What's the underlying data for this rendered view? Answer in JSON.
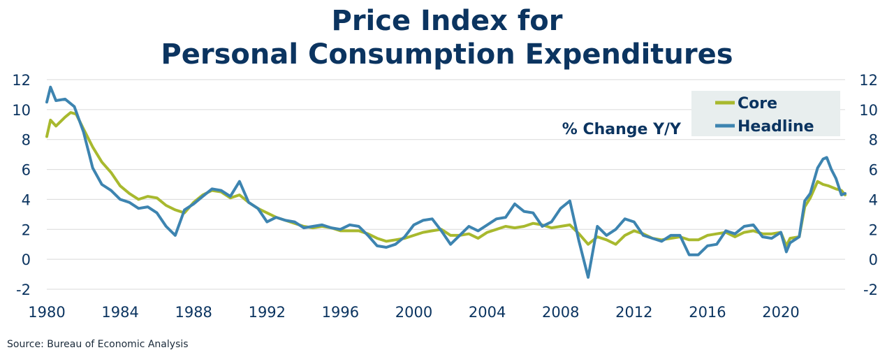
{
  "title_line1": "Price Index for",
  "title_line2": "Personal Consumption Expenditures",
  "source": "Source:  Bureau of Economic Analysis",
  "chart_data": {
    "type": "line",
    "title": "Price Index for Personal Consumption Expenditures",
    "annotation": "% Change Y/Y",
    "xlim": [
      1980,
      2023.5
    ],
    "ylim": [
      -2,
      12
    ],
    "x_ticks": [
      "1980",
      "1984",
      "1988",
      "1992",
      "1996",
      "2000",
      "2004",
      "2008",
      "2012",
      "2016",
      "2020"
    ],
    "y_ticks": [
      "-2",
      "0",
      "2",
      "4",
      "6",
      "8",
      "10",
      "12"
    ],
    "y_ticks_right": [
      "-2",
      "0",
      "2",
      "4",
      "6",
      "8",
      "10",
      "12"
    ],
    "grid": true,
    "legend_position": "top-right",
    "colors": {
      "core": "#a8b92e",
      "headline": "#3d84b0",
      "text": "#0b3460",
      "legend_bg": "#e8eeee",
      "grid": "#d9d9d9"
    },
    "series": [
      {
        "name": "Core",
        "color": "#a8b92e",
        "points": [
          [
            1980.0,
            8.2
          ],
          [
            1980.2,
            9.3
          ],
          [
            1980.5,
            8.9
          ],
          [
            1981.0,
            9.5
          ],
          [
            1981.3,
            9.8
          ],
          [
            1981.6,
            9.7
          ],
          [
            1982.0,
            8.7
          ],
          [
            1982.5,
            7.5
          ],
          [
            1983.0,
            6.5
          ],
          [
            1983.5,
            5.8
          ],
          [
            1984.0,
            4.9
          ],
          [
            1984.5,
            4.4
          ],
          [
            1985.0,
            4.0
          ],
          [
            1985.5,
            4.2
          ],
          [
            1986.0,
            4.1
          ],
          [
            1986.5,
            3.6
          ],
          [
            1987.0,
            3.3
          ],
          [
            1987.5,
            3.1
          ],
          [
            1988.0,
            3.8
          ],
          [
            1988.5,
            4.3
          ],
          [
            1989.0,
            4.6
          ],
          [
            1989.5,
            4.5
          ],
          [
            1990.0,
            4.1
          ],
          [
            1990.5,
            4.3
          ],
          [
            1991.0,
            3.8
          ],
          [
            1991.5,
            3.4
          ],
          [
            1992.0,
            3.1
          ],
          [
            1992.5,
            2.8
          ],
          [
            1993.0,
            2.6
          ],
          [
            1993.5,
            2.4
          ],
          [
            1994.0,
            2.2
          ],
          [
            1994.5,
            2.1
          ],
          [
            1995.0,
            2.2
          ],
          [
            1995.5,
            2.1
          ],
          [
            1996.0,
            1.9
          ],
          [
            1996.5,
            1.9
          ],
          [
            1997.0,
            1.9
          ],
          [
            1997.5,
            1.7
          ],
          [
            1998.0,
            1.4
          ],
          [
            1998.5,
            1.2
          ],
          [
            1999.0,
            1.3
          ],
          [
            1999.5,
            1.4
          ],
          [
            2000.0,
            1.6
          ],
          [
            2000.5,
            1.8
          ],
          [
            2001.0,
            1.9
          ],
          [
            2001.5,
            2.0
          ],
          [
            2002.0,
            1.6
          ],
          [
            2002.5,
            1.6
          ],
          [
            2003.0,
            1.7
          ],
          [
            2003.5,
            1.4
          ],
          [
            2004.0,
            1.8
          ],
          [
            2004.5,
            2.0
          ],
          [
            2005.0,
            2.2
          ],
          [
            2005.5,
            2.1
          ],
          [
            2006.0,
            2.2
          ],
          [
            2006.5,
            2.4
          ],
          [
            2007.0,
            2.3
          ],
          [
            2007.5,
            2.1
          ],
          [
            2008.0,
            2.2
          ],
          [
            2008.5,
            2.3
          ],
          [
            2009.0,
            1.7
          ],
          [
            2009.5,
            1.0
          ],
          [
            2010.0,
            1.5
          ],
          [
            2010.5,
            1.3
          ],
          [
            2011.0,
            1.0
          ],
          [
            2011.5,
            1.6
          ],
          [
            2012.0,
            1.9
          ],
          [
            2012.5,
            1.7
          ],
          [
            2013.0,
            1.4
          ],
          [
            2013.5,
            1.3
          ],
          [
            2014.0,
            1.4
          ],
          [
            2014.5,
            1.5
          ],
          [
            2015.0,
            1.3
          ],
          [
            2015.5,
            1.3
          ],
          [
            2016.0,
            1.6
          ],
          [
            2016.5,
            1.7
          ],
          [
            2017.0,
            1.8
          ],
          [
            2017.5,
            1.5
          ],
          [
            2018.0,
            1.8
          ],
          [
            2018.5,
            1.9
          ],
          [
            2019.0,
            1.7
          ],
          [
            2019.5,
            1.7
          ],
          [
            2020.0,
            1.8
          ],
          [
            2020.3,
            0.9
          ],
          [
            2020.5,
            1.4
          ],
          [
            2021.0,
            1.5
          ],
          [
            2021.3,
            3.5
          ],
          [
            2021.6,
            4.1
          ],
          [
            2022.0,
            5.2
          ],
          [
            2022.3,
            5.0
          ],
          [
            2022.6,
            4.9
          ],
          [
            2023.0,
            4.7
          ],
          [
            2023.3,
            4.6
          ],
          [
            2023.5,
            4.3
          ]
        ]
      },
      {
        "name": "Headline",
        "color": "#3d84b0",
        "points": [
          [
            1980.0,
            10.5
          ],
          [
            1980.2,
            11.5
          ],
          [
            1980.5,
            10.6
          ],
          [
            1981.0,
            10.7
          ],
          [
            1981.5,
            10.2
          ],
          [
            1982.0,
            8.5
          ],
          [
            1982.5,
            6.1
          ],
          [
            1983.0,
            5.0
          ],
          [
            1983.5,
            4.6
          ],
          [
            1984.0,
            4.0
          ],
          [
            1984.5,
            3.8
          ],
          [
            1985.0,
            3.4
          ],
          [
            1985.5,
            3.5
          ],
          [
            1986.0,
            3.1
          ],
          [
            1986.5,
            2.2
          ],
          [
            1987.0,
            1.6
          ],
          [
            1987.5,
            3.3
          ],
          [
            1988.0,
            3.7
          ],
          [
            1988.5,
            4.2
          ],
          [
            1989.0,
            4.7
          ],
          [
            1989.5,
            4.6
          ],
          [
            1990.0,
            4.2
          ],
          [
            1990.5,
            5.2
          ],
          [
            1991.0,
            3.8
          ],
          [
            1991.5,
            3.4
          ],
          [
            1992.0,
            2.5
          ],
          [
            1992.5,
            2.8
          ],
          [
            1993.0,
            2.6
          ],
          [
            1993.5,
            2.5
          ],
          [
            1994.0,
            2.1
          ],
          [
            1994.5,
            2.2
          ],
          [
            1995.0,
            2.3
          ],
          [
            1995.5,
            2.1
          ],
          [
            1996.0,
            2.0
          ],
          [
            1996.5,
            2.3
          ],
          [
            1997.0,
            2.2
          ],
          [
            1997.5,
            1.6
          ],
          [
            1998.0,
            0.9
          ],
          [
            1998.5,
            0.8
          ],
          [
            1999.0,
            1.0
          ],
          [
            1999.5,
            1.5
          ],
          [
            2000.0,
            2.3
          ],
          [
            2000.5,
            2.6
          ],
          [
            2001.0,
            2.7
          ],
          [
            2001.5,
            1.9
          ],
          [
            2002.0,
            1.0
          ],
          [
            2002.5,
            1.6
          ],
          [
            2003.0,
            2.2
          ],
          [
            2003.5,
            1.9
          ],
          [
            2004.0,
            2.3
          ],
          [
            2004.5,
            2.7
          ],
          [
            2005.0,
            2.8
          ],
          [
            2005.5,
            3.7
          ],
          [
            2006.0,
            3.2
          ],
          [
            2006.5,
            3.1
          ],
          [
            2007.0,
            2.2
          ],
          [
            2007.5,
            2.5
          ],
          [
            2008.0,
            3.4
          ],
          [
            2008.5,
            3.9
          ],
          [
            2009.0,
            1.2
          ],
          [
            2009.5,
            -1.2
          ],
          [
            2010.0,
            2.2
          ],
          [
            2010.5,
            1.6
          ],
          [
            2011.0,
            2.0
          ],
          [
            2011.5,
            2.7
          ],
          [
            2012.0,
            2.5
          ],
          [
            2012.5,
            1.6
          ],
          [
            2013.0,
            1.4
          ],
          [
            2013.5,
            1.2
          ],
          [
            2014.0,
            1.6
          ],
          [
            2014.5,
            1.6
          ],
          [
            2015.0,
            0.3
          ],
          [
            2015.5,
            0.3
          ],
          [
            2016.0,
            0.9
          ],
          [
            2016.5,
            1.0
          ],
          [
            2017.0,
            1.9
          ],
          [
            2017.5,
            1.7
          ],
          [
            2018.0,
            2.2
          ],
          [
            2018.5,
            2.3
          ],
          [
            2019.0,
            1.5
          ],
          [
            2019.5,
            1.4
          ],
          [
            2020.0,
            1.8
          ],
          [
            2020.3,
            0.5
          ],
          [
            2020.5,
            1.1
          ],
          [
            2021.0,
            1.5
          ],
          [
            2021.3,
            3.9
          ],
          [
            2021.6,
            4.4
          ],
          [
            2022.0,
            6.1
          ],
          [
            2022.3,
            6.7
          ],
          [
            2022.5,
            6.8
          ],
          [
            2022.75,
            6.0
          ],
          [
            2023.0,
            5.4
          ],
          [
            2023.3,
            4.3
          ],
          [
            2023.5,
            4.4
          ]
        ]
      }
    ]
  }
}
